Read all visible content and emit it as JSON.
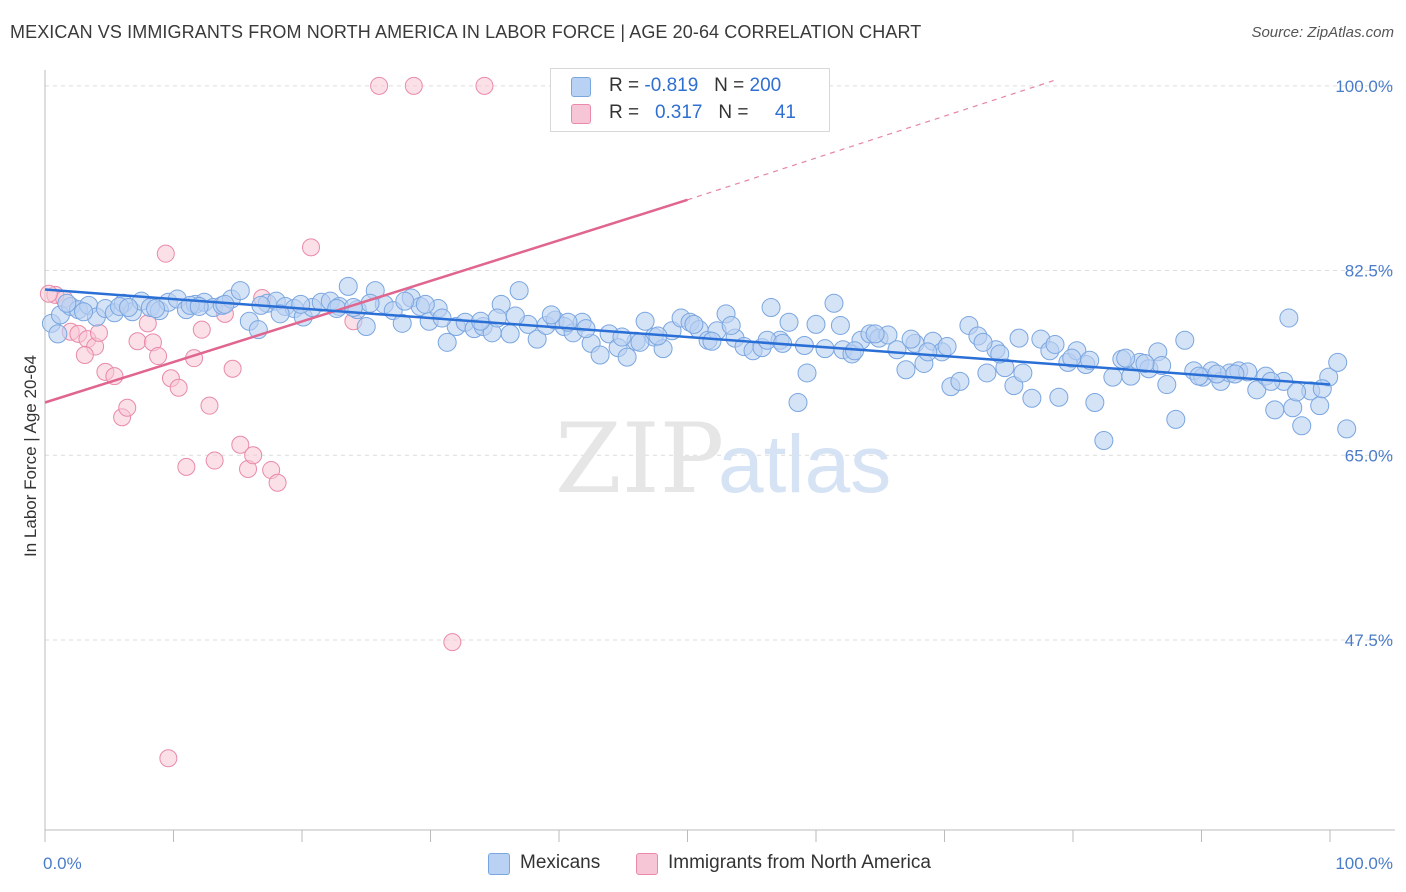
{
  "title": "MEXICAN VS IMMIGRANTS FROM NORTH AMERICA IN LABOR FORCE | AGE 20-64 CORRELATION CHART",
  "source": "Source: ZipAtlas.com",
  "watermark": {
    "zip": "ZIP",
    "atlas": "atlas"
  },
  "colors": {
    "blue_fill": "#b9d1f2",
    "blue_stroke": "#7aa6e0",
    "blue_line": "#2a6fd6",
    "pink_fill": "#f7c6d6",
    "pink_stroke": "#e98aa9",
    "pink_line": "#e0658f",
    "tick_label": "#4a7cc9",
    "grid": "#dcdcdc"
  },
  "legend": {
    "rows": [
      {
        "r_label": "R =",
        "r_value": "-0.819",
        "n_label": "N =",
        "n_value": "200",
        "color": "#b9d1f2"
      },
      {
        "r_label": "R =",
        "r_value": "0.317",
        "n_label": "N =",
        "n_value": "41",
        "color": "#f7c6d6"
      }
    ]
  },
  "bottom_legend": [
    {
      "label": "Mexicans",
      "color": "#b9d1f2"
    },
    {
      "label": "Immigrants from North America",
      "color": "#f7c6d6"
    }
  ],
  "chart_data": {
    "type": "scatter",
    "title": "MEXICAN VS IMMIGRANTS FROM NORTH AMERICA IN LABOR FORCE | AGE 20-64 CORRELATION CHART",
    "xlabel": "",
    "ylabel": "In Labor Force | Age 20-64",
    "xlim": [
      0,
      100
    ],
    "ylim": [
      29.5,
      101.5
    ],
    "x_tick_labels": [
      "0.0%",
      "100.0%"
    ],
    "y_ticks": [
      47.5,
      65.0,
      82.5,
      100.0
    ],
    "y_tick_labels": [
      "47.5%",
      "65.0%",
      "82.5%",
      "100.0%"
    ],
    "grid": true,
    "legend_position": "top-center",
    "series": [
      {
        "name": "Mexicans",
        "R": -0.819,
        "N": 200,
        "trend": {
          "x": [
            0,
            100
          ],
          "y": [
            80.7,
            71.7
          ]
        },
        "points": [
          [
            0.5,
            77.5
          ],
          [
            1.2,
            78.3
          ],
          [
            2.0,
            79.1
          ],
          [
            2.6,
            78.8
          ],
          [
            3.4,
            79.2
          ],
          [
            4.0,
            78.1
          ],
          [
            4.7,
            78.9
          ],
          [
            5.4,
            78.5
          ],
          [
            6.1,
            79.4
          ],
          [
            6.8,
            78.6
          ],
          [
            7.5,
            79.6
          ],
          [
            8.2,
            79.0
          ],
          [
            8.9,
            78.7
          ],
          [
            9.6,
            79.5
          ],
          [
            10.3,
            79.8
          ],
          [
            11.0,
            78.8
          ],
          [
            11.7,
            79.3
          ],
          [
            12.4,
            79.5
          ],
          [
            13.1,
            79.0
          ],
          [
            13.8,
            79.2
          ],
          [
            14.5,
            79.8
          ],
          [
            15.2,
            80.6
          ],
          [
            15.9,
            77.7
          ],
          [
            16.6,
            76.9
          ],
          [
            17.3,
            79.4
          ],
          [
            18.0,
            79.6
          ],
          [
            18.7,
            79.1
          ],
          [
            19.4,
            78.9
          ],
          [
            20.1,
            78.1
          ],
          [
            20.8,
            79.0
          ],
          [
            21.5,
            79.5
          ],
          [
            22.2,
            79.6
          ],
          [
            22.9,
            79.1
          ],
          [
            23.6,
            81.0
          ],
          [
            24.3,
            78.8
          ],
          [
            25.0,
            77.2
          ],
          [
            25.7,
            80.6
          ],
          [
            26.4,
            79.3
          ],
          [
            27.1,
            78.7
          ],
          [
            27.8,
            77.5
          ],
          [
            28.5,
            79.9
          ],
          [
            29.2,
            79.1
          ],
          [
            29.9,
            77.7
          ],
          [
            30.6,
            78.9
          ],
          [
            31.3,
            75.7
          ],
          [
            32.0,
            77.2
          ],
          [
            32.7,
            77.6
          ],
          [
            33.4,
            77.0
          ],
          [
            34.1,
            77.2
          ],
          [
            34.8,
            76.6
          ],
          [
            35.5,
            79.3
          ],
          [
            36.2,
            76.5
          ],
          [
            36.9,
            80.6
          ],
          [
            37.6,
            77.4
          ],
          [
            38.3,
            76.0
          ],
          [
            39.0,
            77.3
          ],
          [
            39.7,
            77.8
          ],
          [
            40.4,
            77.2
          ],
          [
            41.1,
            76.6
          ],
          [
            41.8,
            77.6
          ],
          [
            42.5,
            75.6
          ],
          [
            43.2,
            74.5
          ],
          [
            43.9,
            76.5
          ],
          [
            44.6,
            75.2
          ],
          [
            45.3,
            74.3
          ],
          [
            46.0,
            75.8
          ],
          [
            46.7,
            77.7
          ],
          [
            47.4,
            76.2
          ],
          [
            48.1,
            75.1
          ],
          [
            48.8,
            76.8
          ],
          [
            49.5,
            78.0
          ],
          [
            50.2,
            77.6
          ],
          [
            50.9,
            76.9
          ],
          [
            51.6,
            75.9
          ],
          [
            52.3,
            76.8
          ],
          [
            53.0,
            78.4
          ],
          [
            53.7,
            76.1
          ],
          [
            54.4,
            75.3
          ],
          [
            55.1,
            74.9
          ],
          [
            55.8,
            75.2
          ],
          [
            56.5,
            79.0
          ],
          [
            57.2,
            75.9
          ],
          [
            57.9,
            77.6
          ],
          [
            58.6,
            70.0
          ],
          [
            59.3,
            72.8
          ],
          [
            60.0,
            77.4
          ],
          [
            60.7,
            75.1
          ],
          [
            61.4,
            79.4
          ],
          [
            62.1,
            75.0
          ],
          [
            62.8,
            74.6
          ],
          [
            63.5,
            75.9
          ],
          [
            64.2,
            76.5
          ],
          [
            64.9,
            76.1
          ],
          [
            65.6,
            76.4
          ],
          [
            66.3,
            75.0
          ],
          [
            67.0,
            73.1
          ],
          [
            67.7,
            75.6
          ],
          [
            68.4,
            73.7
          ],
          [
            69.1,
            75.8
          ],
          [
            69.8,
            74.8
          ],
          [
            70.5,
            71.5
          ],
          [
            71.2,
            72.0
          ],
          [
            71.9,
            77.3
          ],
          [
            72.6,
            76.3
          ],
          [
            73.3,
            72.8
          ],
          [
            74.0,
            75.0
          ],
          [
            74.7,
            73.3
          ],
          [
            75.4,
            71.6
          ],
          [
            76.1,
            72.8
          ],
          [
            76.8,
            70.4
          ],
          [
            77.5,
            76.0
          ],
          [
            78.2,
            74.9
          ],
          [
            78.9,
            70.5
          ],
          [
            79.6,
            73.8
          ],
          [
            80.3,
            74.9
          ],
          [
            81.0,
            73.6
          ],
          [
            81.7,
            70.0
          ],
          [
            82.4,
            66.4
          ],
          [
            83.1,
            72.4
          ],
          [
            83.8,
            74.1
          ],
          [
            84.5,
            72.5
          ],
          [
            85.2,
            73.8
          ],
          [
            85.9,
            73.2
          ],
          [
            86.6,
            74.8
          ],
          [
            87.3,
            71.7
          ],
          [
            88.0,
            68.4
          ],
          [
            88.7,
            75.9
          ],
          [
            89.4,
            73.0
          ],
          [
            90.1,
            72.4
          ],
          [
            90.8,
            73.0
          ],
          [
            91.5,
            72.0
          ],
          [
            92.2,
            72.8
          ],
          [
            92.9,
            73.0
          ],
          [
            93.6,
            72.9
          ],
          [
            94.3,
            71.2
          ],
          [
            95.0,
            72.5
          ],
          [
            95.7,
            69.3
          ],
          [
            96.4,
            72.0
          ],
          [
            97.1,
            69.5
          ],
          [
            97.8,
            67.8
          ],
          [
            98.5,
            71.1
          ],
          [
            99.2,
            69.7
          ],
          [
            99.9,
            72.4
          ],
          [
            100.6,
            73.8
          ],
          [
            101.3,
            67.5
          ],
          [
            1.7,
            79.4
          ],
          [
            3.0,
            78.6
          ],
          [
            5.8,
            79.1
          ],
          [
            8.6,
            78.9
          ],
          [
            11.3,
            79.2
          ],
          [
            14.0,
            79.3
          ],
          [
            16.8,
            79.2
          ],
          [
            19.9,
            79.3
          ],
          [
            22.7,
            78.9
          ],
          [
            25.3,
            79.4
          ],
          [
            28.0,
            79.6
          ],
          [
            30.9,
            78.0
          ],
          [
            33.9,
            77.7
          ],
          [
            36.6,
            78.2
          ],
          [
            39.4,
            78.3
          ],
          [
            42.1,
            77.0
          ],
          [
            44.9,
            76.2
          ],
          [
            47.7,
            76.3
          ],
          [
            50.5,
            77.4
          ],
          [
            53.4,
            77.3
          ],
          [
            56.2,
            75.9
          ],
          [
            59.1,
            75.4
          ],
          [
            61.9,
            77.3
          ],
          [
            64.6,
            76.5
          ],
          [
            67.4,
            76.0
          ],
          [
            70.2,
            75.3
          ],
          [
            73.0,
            75.7
          ],
          [
            75.8,
            76.1
          ],
          [
            78.6,
            75.5
          ],
          [
            81.3,
            74.0
          ],
          [
            84.1,
            74.2
          ],
          [
            86.9,
            73.5
          ],
          [
            89.8,
            72.5
          ],
          [
            92.6,
            72.7
          ],
          [
            95.4,
            72.0
          ],
          [
            97.4,
            71.0
          ],
          [
            99.4,
            71.3
          ],
          [
            1.0,
            76.5
          ],
          [
            6.5,
            79.0
          ],
          [
            12.0,
            79.1
          ],
          [
            18.3,
            78.4
          ],
          [
            24.0,
            79.0
          ],
          [
            29.6,
            79.3
          ],
          [
            35.2,
            78.0
          ],
          [
            40.7,
            77.6
          ],
          [
            46.3,
            75.7
          ],
          [
            51.9,
            75.8
          ],
          [
            57.4,
            75.6
          ],
          [
            63.0,
            74.9
          ],
          [
            68.7,
            74.8
          ],
          [
            74.3,
            74.6
          ],
          [
            79.9,
            74.2
          ],
          [
            85.6,
            73.7
          ],
          [
            91.2,
            72.7
          ],
          [
            96.8,
            78.0
          ]
        ]
      },
      {
        "name": "Immigrants from North America",
        "R": 0.317,
        "N": 41,
        "trend": {
          "x": [
            0,
            50
          ],
          "y": [
            70.0,
            89.2
          ]
        },
        "trend_dashed": {
          "x": [
            50,
            78.5
          ],
          "y": [
            89.2,
            100.5
          ]
        },
        "points": [
          [
            0.8,
            80.2
          ],
          [
            1.5,
            79.8
          ],
          [
            2.0,
            76.7
          ],
          [
            2.6,
            76.5
          ],
          [
            3.3,
            76.0
          ],
          [
            3.9,
            75.3
          ],
          [
            4.7,
            72.9
          ],
          [
            5.4,
            72.5
          ],
          [
            6.0,
            68.6
          ],
          [
            6.4,
            69.5
          ],
          [
            7.2,
            75.8
          ],
          [
            8.0,
            77.5
          ],
          [
            8.4,
            75.7
          ],
          [
            8.8,
            74.4
          ],
          [
            9.4,
            84.1
          ],
          [
            9.8,
            72.3
          ],
          [
            10.4,
            71.4
          ],
          [
            11.0,
            63.9
          ],
          [
            11.6,
            74.2
          ],
          [
            12.2,
            76.9
          ],
          [
            12.8,
            69.7
          ],
          [
            13.2,
            64.5
          ],
          [
            14.0,
            78.4
          ],
          [
            14.6,
            73.2
          ],
          [
            15.2,
            66.0
          ],
          [
            15.8,
            63.7
          ],
          [
            16.2,
            65.0
          ],
          [
            16.9,
            79.9
          ],
          [
            17.6,
            63.6
          ],
          [
            18.1,
            62.4
          ],
          [
            20.7,
            84.7
          ],
          [
            24.0,
            77.7
          ],
          [
            26.0,
            100.0
          ],
          [
            28.7,
            100.0
          ],
          [
            31.7,
            47.3
          ],
          [
            34.2,
            100.0
          ],
          [
            47.4,
            100.0
          ],
          [
            9.6,
            36.3
          ],
          [
            4.2,
            76.6
          ],
          [
            0.3,
            80.3
          ],
          [
            3.1,
            74.5
          ]
        ]
      }
    ]
  }
}
